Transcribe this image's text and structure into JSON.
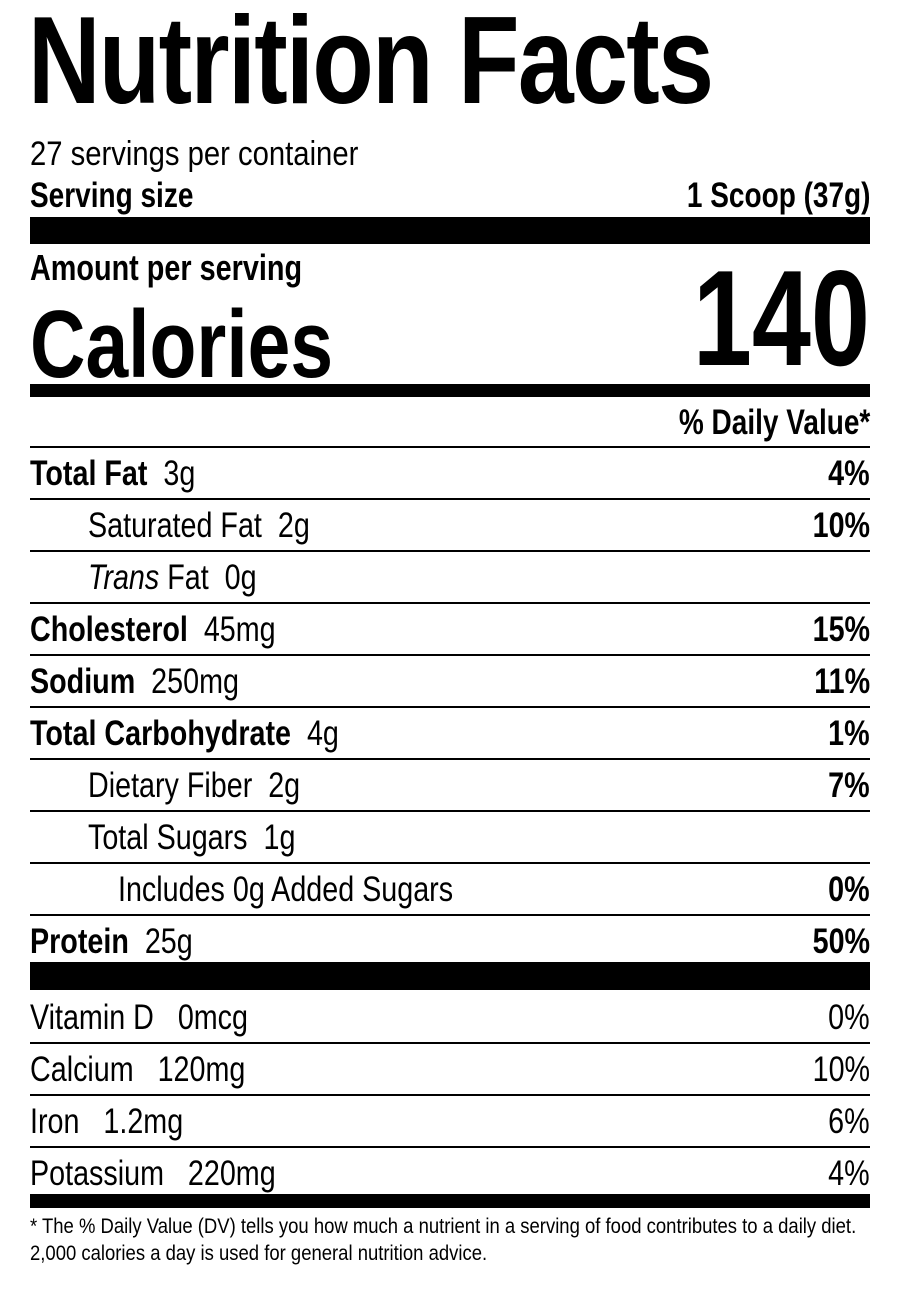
{
  "title": "Nutrition Facts",
  "servings_per_container": "27 servings per container",
  "serving_size_label": "Serving size",
  "serving_size_value": "1 Scoop (37g)",
  "amount_per_serving": "Amount per serving",
  "calories_label": "Calories",
  "calories_value": "140",
  "dv_header": "% Daily Value*",
  "nutrients": [
    {
      "name": "Total Fat",
      "amount": "3g",
      "dv": "4%"
    },
    {
      "name": "Saturated Fat",
      "amount": "2g",
      "dv": "10%"
    },
    {
      "name_italic": "Trans",
      "name": "Fat",
      "amount": "0g",
      "dv": ""
    },
    {
      "name": "Cholesterol",
      "amount": "45mg",
      "dv": "15%"
    },
    {
      "name": "Sodium",
      "amount": "250mg",
      "dv": "11%"
    },
    {
      "name": "Total Carbohydrate",
      "amount": "4g",
      "dv": "1%"
    },
    {
      "name": "Dietary Fiber",
      "amount": "2g",
      "dv": "7%"
    },
    {
      "name": "Total Sugars",
      "amount": "1g",
      "dv": ""
    },
    {
      "name": "Includes 0g Added Sugars",
      "dv": "0%"
    },
    {
      "name": "Protein",
      "amount": "25g",
      "dv": "50%"
    }
  ],
  "vitamins": [
    {
      "name": "Vitamin D",
      "amount": "0mcg",
      "dv": "0%"
    },
    {
      "name": "Calcium",
      "amount": "120mg",
      "dv": "10%"
    },
    {
      "name": "Iron",
      "amount": "1.2mg",
      "dv": "6%"
    },
    {
      "name": "Potassium",
      "amount": "220mg",
      "dv": "4%"
    }
  ],
  "footnote": "* The % Daily Value (DV) tells you how much a nutrient in a serving of food contributes to a daily diet. 2,000 calories a day is used for general nutrition advice."
}
